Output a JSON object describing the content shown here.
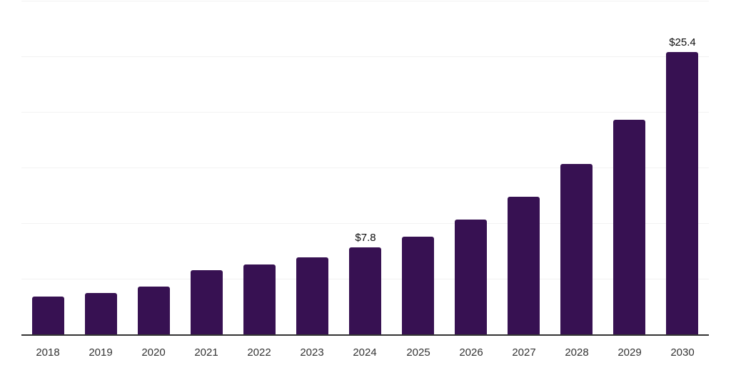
{
  "chart_data": {
    "type": "bar",
    "categories": [
      "2018",
      "2019",
      "2020",
      "2021",
      "2022",
      "2023",
      "2024",
      "2025",
      "2026",
      "2027",
      "2028",
      "2029",
      "2030"
    ],
    "values": [
      3.4,
      3.7,
      4.3,
      5.8,
      6.3,
      6.9,
      7.8,
      8.8,
      10.3,
      12.4,
      15.3,
      19.3,
      25.4
    ],
    "data_labels": {
      "2024": "$7.8",
      "2030": "$25.4"
    },
    "title": "",
    "xlabel": "",
    "ylabel": "",
    "ylim": [
      0,
      30
    ],
    "gridline_step": 5,
    "grid": true,
    "legend": false,
    "y_tick_labels_shown": false,
    "colors": {
      "bar": "#371152",
      "axis": "#333333",
      "gridline": "#f2f2f2",
      "tick_label": "#333333",
      "data_label": "#0d0d0d",
      "background": "#ffffff"
    }
  }
}
